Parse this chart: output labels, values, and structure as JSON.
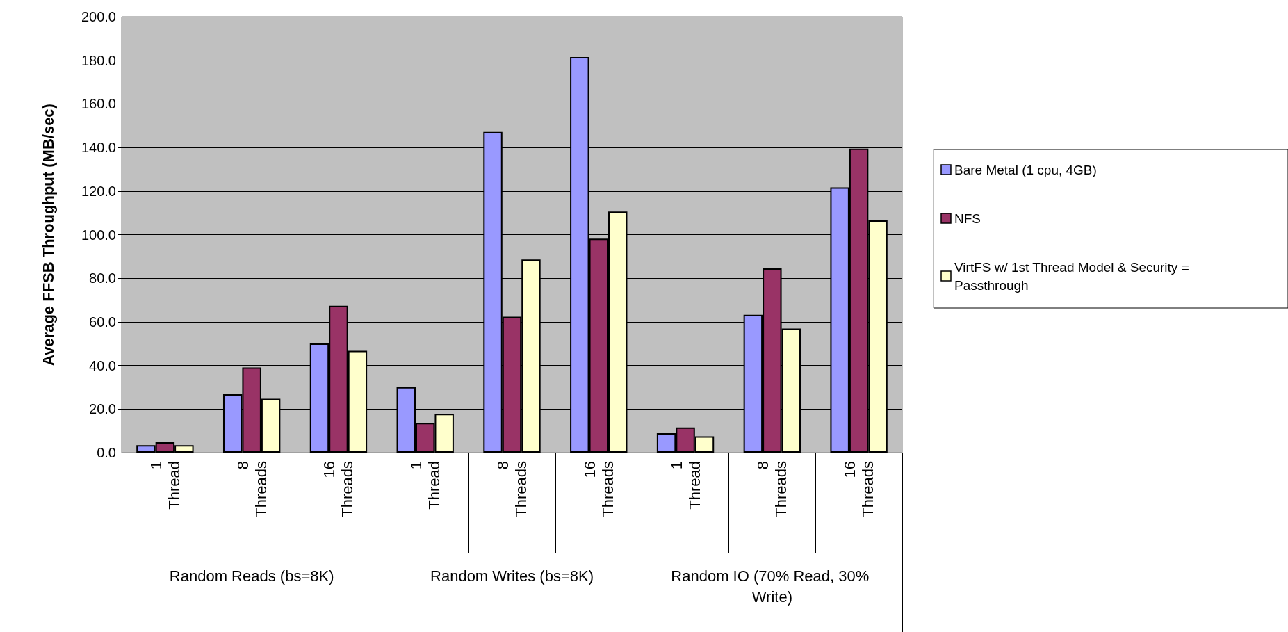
{
  "chart_data": {
    "type": "bar",
    "ylabel": "Average FFSB Throughput (MB/sec)",
    "categories": [
      "1 Thread",
      "8 Threads",
      "16 Threads",
      "1 Thread",
      "8 Threads",
      "16 Threads",
      "1 Thread",
      "8 Threads",
      "16 Threads"
    ],
    "annotations": [
      "Random Reads (bs=8K)",
      "Random Writes (bs=8K)",
      "Random IO (70% Read, 30% Write)"
    ],
    "series": [
      {
        "name": "Bare Metal (1 cpu, 4GB)",
        "color": "#9999ff",
        "values": [
          3.4,
          26.8,
          50.1,
          30.1,
          147.1,
          181.5,
          8.9,
          63.2,
          121.7
        ]
      },
      {
        "name": "NFS",
        "color": "#993366",
        "values": [
          4.8,
          39.1,
          67.4,
          13.6,
          62.4,
          98.2,
          11.6,
          84.5,
          139.5
        ]
      },
      {
        "name": "VirtFS w/ 1st Thread Model & Security = Passthrough",
        "color": "#ffffcc",
        "values": [
          3.4,
          24.7,
          46.7,
          17.8,
          88.6,
          110.6,
          7.5,
          56.9,
          106.5
        ]
      }
    ],
    "ylim": [
      0,
      200
    ],
    "yticks": [
      {
        "value": 0,
        "label": "0.0"
      },
      {
        "value": 20,
        "label": "20.0"
      },
      {
        "value": 40,
        "label": "40.0"
      },
      {
        "value": 60,
        "label": "60.0"
      },
      {
        "value": 80,
        "label": "80.0"
      },
      {
        "value": 100,
        "label": "100.0"
      },
      {
        "value": 120,
        "label": "120.0"
      },
      {
        "value": 140,
        "label": "140.0"
      },
      {
        "value": 160,
        "label": "160.0"
      },
      {
        "value": 180,
        "label": "180.0"
      },
      {
        "value": 200,
        "label": "200.0"
      }
    ],
    "grid": "y",
    "legend": "right"
  }
}
